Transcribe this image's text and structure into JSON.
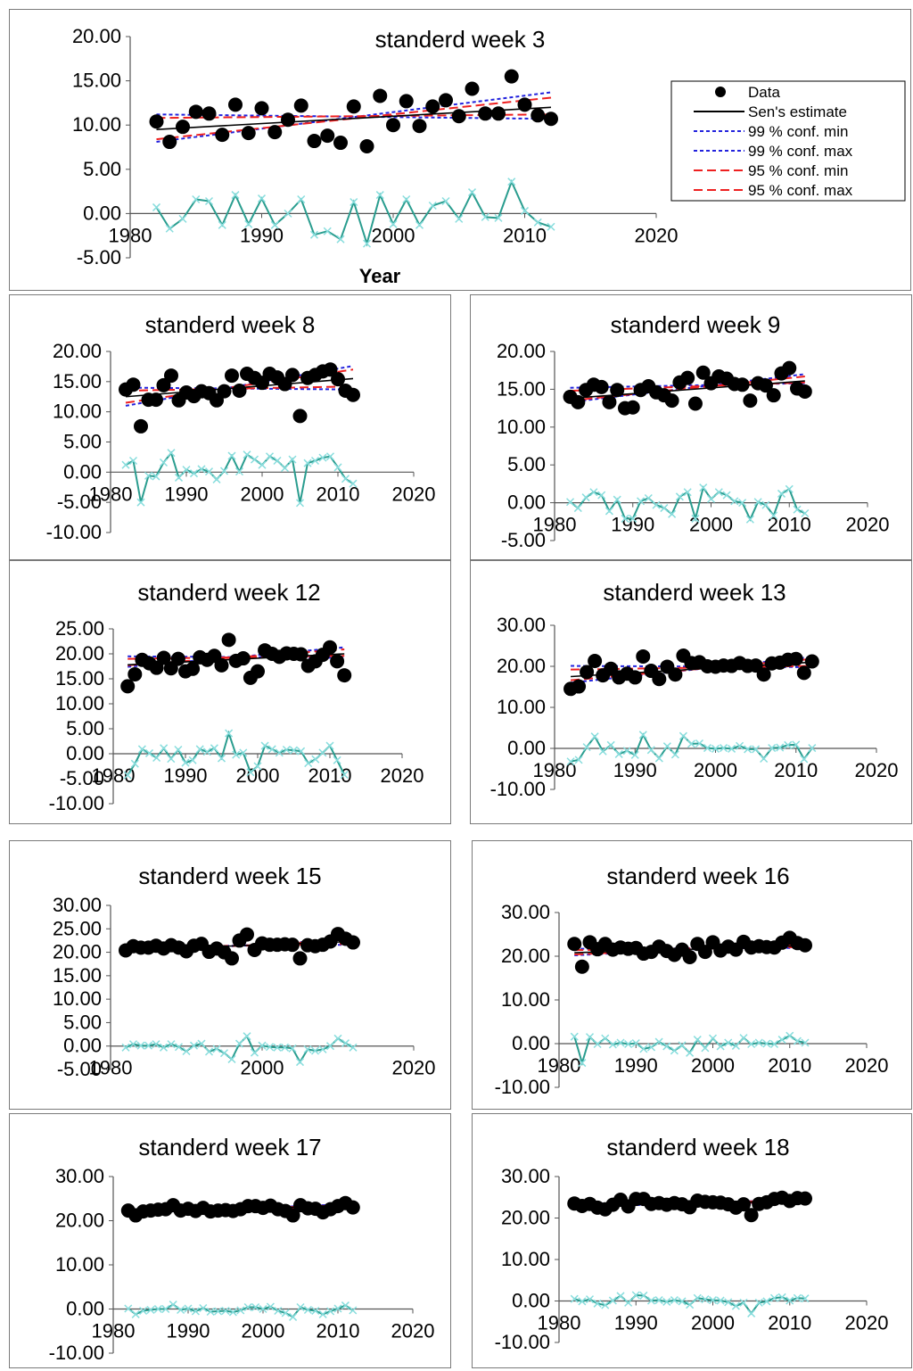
{
  "legend": {
    "items": [
      {
        "label": "Data",
        "kind": "marker",
        "color": "#000000"
      },
      {
        "label": "Sen's estimate",
        "kind": "solid",
        "color": "#000000"
      },
      {
        "label": "99 % conf. min",
        "kind": "dotted",
        "color": "#2222dd"
      },
      {
        "label": "99 % conf. max",
        "kind": "dotted",
        "color": "#2222dd"
      },
      {
        "label": "95 % conf. min",
        "kind": "dashed",
        "color": "#ee2020"
      },
      {
        "label": "95 % conf. max",
        "kind": "dashed",
        "color": "#ee2020"
      }
    ]
  },
  "colors": {
    "data": "#000000",
    "sen": "#000000",
    "conf99": "#2222dd",
    "conf95": "#ee2020",
    "residual": "#2a9d8f",
    "residual_marker": "#88dddd"
  },
  "chart_data": [
    {
      "type": "scatter",
      "title": "standerd week 3",
      "xlabel": "Year",
      "ylabel": "",
      "xlim": [
        1980,
        2020
      ],
      "ylim": [
        -5,
        20
      ],
      "yticks": [
        "-5.00",
        "0.00",
        "5.00",
        "10.00",
        "15.00",
        "20.00"
      ],
      "xticks": [
        "1980",
        "1990",
        "2000",
        "2010",
        "2020"
      ],
      "x": [
        1982,
        1983,
        1984,
        1985,
        1986,
        1987,
        1988,
        1989,
        1990,
        1991,
        1992,
        1993,
        1994,
        1995,
        1996,
        1997,
        1998,
        1999,
        2000,
        2001,
        2002,
        2003,
        2004,
        2005,
        2006,
        2007,
        2008,
        2009,
        2010,
        2011,
        2012
      ],
      "data": [
        10.4,
        8.1,
        9.8,
        11.5,
        11.3,
        8.9,
        12.3,
        9.1,
        11.9,
        9.2,
        10.6,
        12.2,
        8.2,
        8.8,
        8,
        12.1,
        7.6,
        13.3,
        10,
        12.7,
        9.9,
        12.1,
        12.8,
        11,
        14.1,
        11.3,
        11.3,
        15.5,
        12.3,
        11.1,
        10.7
      ],
      "sen": [
        9.5,
        12.0
      ],
      "conf99_min": [
        11.2,
        10.7
      ],
      "conf99_max": [
        8.1,
        13.7
      ],
      "conf95_min": [
        10.8,
        11.2
      ],
      "conf95_max": [
        8.4,
        13.1
      ],
      "residual": [
        0.7,
        -1.7,
        -0.6,
        1.6,
        1.4,
        -1.3,
        2.1,
        -1.2,
        1.7,
        -1.3,
        0,
        1.6,
        -2.4,
        -2,
        -2.9,
        1.3,
        -3.4,
        2.1,
        -1.2,
        1.6,
        -1.3,
        0.9,
        1.4,
        -0.6,
        2.4,
        -0.4,
        -0.5,
        3.6,
        0.3,
        -1,
        -1.5
      ]
    },
    {
      "type": "scatter",
      "title": "standerd week 8",
      "xlabel": "",
      "ylabel": "",
      "xlim": [
        1980,
        2020
      ],
      "ylim": [
        -10,
        20
      ],
      "yticks": [
        "-10.00",
        "-5.00",
        "0.00",
        "5.00",
        "10.00",
        "15.00",
        "20.00"
      ],
      "xticks": [
        "1980",
        "1990",
        "2000",
        "2010",
        "2020"
      ],
      "x": [
        1982,
        1983,
        1984,
        1985,
        1986,
        1987,
        1988,
        1989,
        1990,
        1991,
        1992,
        1993,
        1994,
        1995,
        1996,
        1997,
        1998,
        1999,
        2000,
        2001,
        2002,
        2003,
        2004,
        2005,
        2006,
        2007,
        2008,
        2009,
        2010,
        2011,
        2012
      ],
      "data": [
        13.7,
        14.5,
        7.6,
        12,
        12,
        14.4,
        16,
        11.9,
        13.2,
        12.6,
        13.4,
        13.1,
        11.9,
        13.4,
        16,
        13.5,
        16.3,
        15.6,
        14.8,
        16.3,
        15.7,
        14.6,
        16.1,
        9.3,
        15.6,
        16.1,
        16.7,
        17,
        15.4,
        13.5,
        12.8
      ],
      "sen": [
        12.5,
        15.5
      ],
      "conf99_min": [
        14,
        13.7
      ],
      "conf99_max": [
        11,
        17.6
      ],
      "conf95_min": [
        13.5,
        14.2
      ],
      "conf95_max": [
        11.5,
        17
      ],
      "residual": [
        1.2,
        1.9,
        -5,
        -0.6,
        -0.7,
        1.6,
        3.2,
        -0.9,
        0.4,
        -0.2,
        0.5,
        0.1,
        -1.2,
        0.2,
        2.7,
        0.1,
        2.9,
        2.1,
        1.2,
        2.6,
        1.9,
        0.7,
        2.1,
        -5.1,
        1.5,
        1.9,
        2.4,
        2.6,
        0.8,
        -1.1,
        -1.9
      ]
    },
    {
      "type": "scatter",
      "title": "standerd week 9",
      "xlabel": "",
      "ylabel": "",
      "xlim": [
        1980,
        2020
      ],
      "ylim": [
        -5,
        20
      ],
      "yticks": [
        "-5.00",
        "0.00",
        "5.00",
        "10.00",
        "15.00",
        "20.00"
      ],
      "xticks": [
        "1980",
        "1990",
        "2000",
        "2010",
        "2020"
      ],
      "x": [
        1982,
        1983,
        1984,
        1985,
        1986,
        1987,
        1988,
        1989,
        1990,
        1991,
        1992,
        1993,
        1994,
        1995,
        1996,
        1997,
        1998,
        1999,
        2000,
        2001,
        2002,
        2003,
        2004,
        2005,
        2006,
        2007,
        2008,
        2009,
        2010,
        2011,
        2012
      ],
      "data": [
        14,
        13.3,
        14.9,
        15.6,
        15.3,
        13.3,
        14.9,
        12.5,
        12.6,
        14.9,
        15.4,
        14.6,
        14.2,
        13.5,
        15.9,
        16.5,
        13.1,
        17.2,
        15.8,
        16.7,
        16.4,
        15.7,
        15.6,
        13.5,
        15.8,
        15.5,
        14.2,
        17.1,
        17.8,
        15.1,
        14.7
      ],
      "sen": [
        13.8,
        16.1
      ],
      "conf99_min": [
        15.2,
        15.8
      ],
      "conf99_max": [
        13.3,
        17
      ],
      "conf95_min": [
        14.8,
        15.9
      ],
      "conf95_max": [
        13.5,
        16.7
      ],
      "residual": [
        0.1,
        -0.7,
        0.7,
        1.4,
        1,
        -1.1,
        0.4,
        -2.1,
        -2.1,
        0.2,
        0.6,
        -0.3,
        -0.7,
        -1.5,
        0.8,
        1.4,
        -2.1,
        2.0,
        0.5,
        1.4,
        1.0,
        0.2,
        0.0,
        -2.2,
        0.1,
        -0.3,
        -1.7,
        1.2,
        1.8,
        -0.9,
        -1.4
      ]
    },
    {
      "type": "scatter",
      "title": "standerd week 12",
      "xlabel": "",
      "ylabel": "",
      "xlim": [
        1980,
        2020
      ],
      "ylim": [
        -10,
        25
      ],
      "yticks": [
        "-10.00",
        "-5.00",
        "0.00",
        "5.00",
        "10.00",
        "15.00",
        "20.00",
        "25.00"
      ],
      "xticks": [
        "1980",
        "1990",
        "2000",
        "2010",
        "2020"
      ],
      "x": [
        1982,
        1983,
        1984,
        1985,
        1986,
        1987,
        1988,
        1989,
        1990,
        1991,
        1992,
        1993,
        1994,
        1995,
        1996,
        1997,
        1998,
        1999,
        2000,
        2001,
        2002,
        2003,
        2004,
        2005,
        2006,
        2007,
        2008,
        2009,
        2010,
        2011,
        2012
      ],
      "data": [
        13.5,
        15.9,
        18.8,
        18.1,
        17.2,
        19.2,
        17.1,
        19,
        16.5,
        17,
        19.3,
        18.8,
        19.6,
        17.7,
        22.8,
        18.6,
        19.1,
        15.2,
        16.5,
        20.7,
        20,
        19.4,
        20.1,
        20,
        19.9,
        17.6,
        18.5,
        19.8,
        21.3,
        18.5,
        15.7
      ],
      "sen": [
        17.8,
        20.0
      ],
      "conf99_min": [
        19.5,
        19.2
      ],
      "conf99_max": [
        17.4,
        21.3
      ],
      "conf95_min": [
        19,
        19.6
      ],
      "conf95_max": [
        17.7,
        20.9
      ],
      "residual": [
        -4.3,
        -2,
        0.9,
        0.1,
        -0.8,
        1.1,
        -1,
        0.8,
        -1.8,
        -1.3,
        0.9,
        0.4,
        1.1,
        -0.9,
        4.1,
        -0.2,
        0.2,
        -3.7,
        -2.5,
        1.6,
        0.9,
        0.2,
        0.8,
        0.7,
        0.5,
        -1.9,
        -1.1,
        0.2,
        1.6,
        -1.3,
        -4.2
      ]
    },
    {
      "type": "scatter",
      "title": "standerd week 13",
      "xlabel": "",
      "ylabel": "",
      "xlim": [
        1980,
        2020
      ],
      "ylim": [
        -10,
        30
      ],
      "yticks": [
        "-10.00",
        "0.00",
        "10.00",
        "20.00",
        "30.00"
      ],
      "xticks": [
        "1980",
        "1990",
        "2000",
        "2010",
        "2020"
      ],
      "x": [
        1982,
        1983,
        1984,
        1985,
        1986,
        1987,
        1988,
        1989,
        1990,
        1991,
        1992,
        1993,
        1994,
        1995,
        1996,
        1997,
        1998,
        1999,
        2000,
        2001,
        2002,
        2003,
        2004,
        2005,
        2006,
        2007,
        2008,
        2009,
        2010,
        2011,
        2012
      ],
      "data": [
        14.5,
        15.1,
        18.6,
        21.3,
        17.8,
        19.4,
        17.3,
        18.2,
        17.3,
        22.4,
        18.9,
        16.9,
        19.9,
        18,
        22.6,
        20.8,
        21,
        20,
        19.9,
        20.2,
        20.1,
        20.8,
        20.1,
        20.2,
        18,
        20.7,
        20.9,
        21.6,
        21.8,
        18.4,
        21.2
      ],
      "sen": [
        17.5,
        21.0
      ],
      "conf99_min": [
        20.1,
        19.8
      ],
      "conf99_max": [
        16,
        22.3
      ],
      "conf95_min": [
        19.2,
        20.1
      ],
      "conf95_max": [
        16.6,
        21.8
      ],
      "residual": [
        -3.2,
        -2.8,
        0.3,
        2.9,
        -0.7,
        0.8,
        -1.4,
        -0.6,
        -1.6,
        3.3,
        -0.4,
        -2.4,
        0.5,
        -1.5,
        3.0,
        1.1,
        1.2,
        0.1,
        -0.1,
        0.1,
        -0.1,
        0.6,
        -0.2,
        -0.2,
        -2.5,
        0.1,
        0.2,
        0.8,
        0.9,
        -2.6,
        0.1
      ]
    },
    {
      "type": "scatter",
      "title": "standerd week 15",
      "xlabel": "",
      "ylabel": "",
      "xlim": [
        1980,
        2020
      ],
      "ylim": [
        -5,
        30
      ],
      "yticks": [
        "-5.00",
        "0.00",
        "5.00",
        "10.00",
        "15.00",
        "20.00",
        "25.00",
        "30.00"
      ],
      "xticks": [
        "1980",
        "2000",
        "2020"
      ],
      "x": [
        1982,
        1983,
        1984,
        1985,
        1986,
        1987,
        1988,
        1989,
        1990,
        1991,
        1992,
        1993,
        1994,
        1995,
        1996,
        1997,
        1998,
        1999,
        2000,
        2001,
        2002,
        2003,
        2004,
        2005,
        2006,
        2007,
        2008,
        2009,
        2010,
        2011,
        2012
      ],
      "data": [
        20.4,
        21.3,
        21,
        21,
        21.4,
        20.8,
        21.5,
        21,
        20.2,
        21.4,
        21.8,
        20.1,
        20.8,
        20,
        18.7,
        22.5,
        23.8,
        20.5,
        21.9,
        21.6,
        21.6,
        21.7,
        21.6,
        18.7,
        21.5,
        21.3,
        21.6,
        22.3,
        23.9,
        22.9,
        22.1
      ],
      "sen": [
        20.5,
        22.3
      ],
      "conf99_min": [
        21.2,
        21.6
      ],
      "conf99_max": [
        20.0,
        22.8
      ],
      "conf95_min": [
        21.0,
        21.8
      ],
      "conf95_max": [
        20.2,
        22.6
      ],
      "residual": [
        -0.3,
        0.4,
        0.1,
        0.1,
        0.4,
        -0.3,
        0.4,
        -0.2,
        -1.1,
        0.1,
        0.5,
        -1.2,
        -0.6,
        -1.5,
        -2.8,
        0.5,
        2.1,
        -1.4,
        0.1,
        -0.2,
        -0.3,
        -0.3,
        -0.5,
        -3.4,
        -0.7,
        -1,
        -0.7,
        0,
        1.6,
        0.6,
        -0.3
      ]
    },
    {
      "type": "scatter",
      "title": "standerd week 16",
      "xlabel": "",
      "ylabel": "",
      "xlim": [
        1980,
        2020
      ],
      "ylim": [
        -10,
        30
      ],
      "yticks": [
        "-10.00",
        "0.00",
        "10.00",
        "20.00",
        "30.00"
      ],
      "xticks": [
        "1980",
        "1990",
        "2000",
        "2010",
        "2020"
      ],
      "x": [
        1982,
        1983,
        1984,
        1985,
        1986,
        1987,
        1988,
        1989,
        1990,
        1991,
        1992,
        1993,
        1994,
        1995,
        1996,
        1997,
        1998,
        1999,
        2000,
        2001,
        2002,
        2003,
        2004,
        2005,
        2006,
        2007,
        2008,
        2009,
        2010,
        2011,
        2012
      ],
      "data": [
        22.8,
        17.6,
        23.2,
        21.6,
        22.8,
        21.5,
        22,
        21.7,
        21.9,
        20.6,
        21,
        22.2,
        21.2,
        20.3,
        21.5,
        19.8,
        22.8,
        21,
        23.2,
        21.3,
        22.2,
        21.5,
        23.3,
        22,
        22.3,
        22.1,
        22,
        23.1,
        24.2,
        23,
        22.5
      ],
      "sen": [
        20.8,
        22.4
      ],
      "conf99_min": [
        21.7,
        21.9
      ],
      "conf99_max": [
        20.2,
        22.9
      ],
      "conf95_min": [
        21.4,
        22.1
      ],
      "conf95_max": [
        20.4,
        22.7
      ],
      "residual": [
        1.6,
        -4.4,
        1.5,
        -0.1,
        1.2,
        -0.2,
        0.2,
        -0.1,
        0.1,
        -1.2,
        -0.8,
        0.4,
        -0.6,
        -1.6,
        -0.4,
        -2.1,
        0.9,
        -1,
        1.2,
        -0.6,
        0.2,
        -0.5,
        1.3,
        -0.1,
        0.2,
        0,
        -0.1,
        0.9,
        1.8,
        0.6,
        0.2
      ]
    },
    {
      "type": "scatter",
      "title": "standerd week 17",
      "xlabel": "",
      "ylabel": "",
      "xlim": [
        1980,
        2020
      ],
      "ylim": [
        -10,
        30
      ],
      "yticks": [
        "-10.00",
        "0.00",
        "10.00",
        "20.00",
        "30.00"
      ],
      "xticks": [
        "1980",
        "1990",
        "2000",
        "2010",
        "2020"
      ],
      "x": [
        1982,
        1983,
        1984,
        1985,
        1986,
        1987,
        1988,
        1989,
        1990,
        1991,
        1992,
        1993,
        1994,
        1995,
        1996,
        1997,
        1998,
        1999,
        2000,
        2001,
        2002,
        2003,
        2004,
        2005,
        2006,
        2007,
        2008,
        2009,
        2010,
        2011,
        2012
      ],
      "data": [
        22.3,
        21.2,
        22.1,
        22.3,
        22.5,
        22.6,
        23.5,
        22.3,
        22.7,
        22.2,
        22.9,
        22.1,
        22.3,
        22.4,
        22.2,
        22.6,
        23.3,
        23.3,
        22.9,
        23.4,
        22.6,
        22.2,
        21.2,
        23.5,
        22.8,
        22.7,
        21.9,
        22.6,
        23.3,
        24,
        23
      ],
      "sen": [
        22.1,
        23.4
      ],
      "conf99_min": [
        22.6,
        22.9
      ],
      "conf99_max": [
        21.7,
        23.8
      ],
      "conf95_min": [
        22.5,
        23.0
      ],
      "conf95_max": [
        21.8,
        23.6
      ],
      "residual": [
        0.1,
        -1.2,
        -0.4,
        -0.2,
        0,
        0,
        1,
        -0.2,
        0.1,
        -0.5,
        0.2,
        -0.6,
        -0.5,
        -0.4,
        -0.7,
        -0.3,
        0.4,
        0.4,
        0,
        0.5,
        -0.4,
        -0.9,
        -1.8,
        0.4,
        -0.2,
        -0.4,
        -1.2,
        -0.5,
        0.1,
        0.8,
        -0.3
      ]
    },
    {
      "type": "scatter",
      "title": "standerd week 18",
      "xlabel": "",
      "ylabel": "",
      "xlim": [
        1980,
        2020
      ],
      "ylim": [
        -10,
        30
      ],
      "yticks": [
        "-10.00",
        "0.00",
        "10.00",
        "20.00",
        "30.00"
      ],
      "xticks": [
        "1980",
        "1990",
        "2000",
        "2010",
        "2020"
      ],
      "x": [
        1982,
        1983,
        1984,
        1985,
        1986,
        1987,
        1988,
        1989,
        1990,
        1991,
        1992,
        1993,
        1994,
        1995,
        1996,
        1997,
        1998,
        1999,
        2000,
        2001,
        2002,
        2003,
        2004,
        2005,
        2006,
        2007,
        2008,
        2009,
        2010,
        2011,
        2012
      ],
      "data": [
        23.5,
        22.9,
        23.4,
        22.5,
        22.1,
        23.2,
        24.4,
        22.8,
        24.6,
        24.6,
        23.4,
        23.6,
        23.2,
        23.6,
        23.3,
        22.6,
        24.2,
        23.9,
        23.8,
        23.7,
        23.3,
        22.5,
        23.3,
        20.7,
        23.4,
        23.8,
        24.6,
        24.9,
        24.1,
        24.8,
        24.7
      ],
      "sen": [
        23.0,
        24.1
      ],
      "conf99_min": [
        23.5,
        23.7
      ],
      "conf99_max": [
        22.6,
        24.5
      ],
      "conf95_min": [
        23.4,
        23.8
      ],
      "conf95_max": [
        22.7,
        24.4
      ],
      "residual": [
        0.5,
        -0.1,
        0.4,
        -0.6,
        -1,
        0.1,
        1.2,
        -0.4,
        1.4,
        1.3,
        0.1,
        0.2,
        -0.2,
        0.2,
        -0.1,
        -0.9,
        0.7,
        0.4,
        0.2,
        0.1,
        -0.3,
        -1.2,
        -0.4,
        -3,
        -0.4,
        -0.1,
        0.7,
        0.9,
        0.1,
        0.7,
        0.6
      ]
    }
  ]
}
